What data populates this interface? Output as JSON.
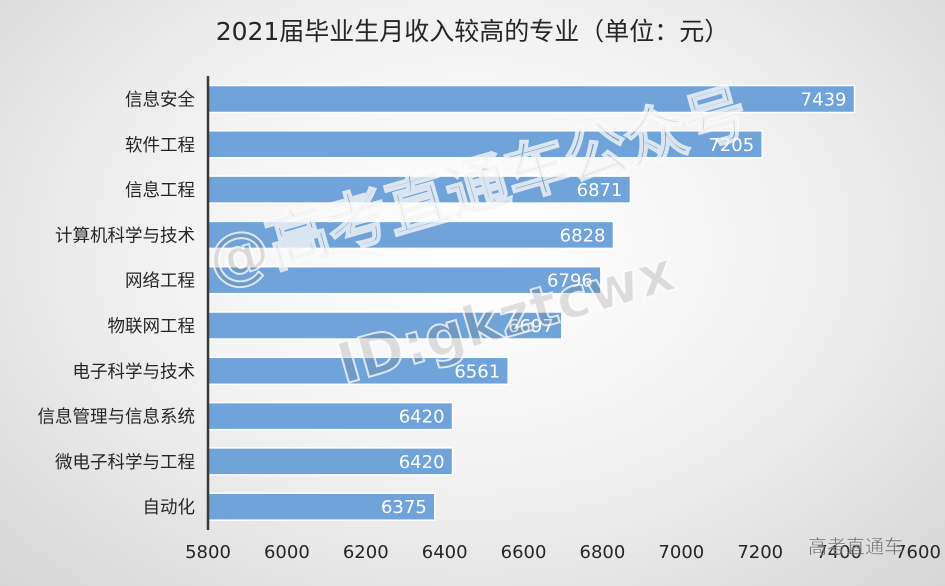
{
  "chart_data": {
    "type": "bar",
    "orientation": "horizontal",
    "title": "2021届毕业生月收入较高的专业（单位：元）",
    "categories": [
      "信息安全",
      "软件工程",
      "信息工程",
      "计算机科学与技术",
      "网络工程",
      "物联网工程",
      "电子科学与技术",
      "信息管理与信息系统",
      "微电子科学与工程",
      "自动化"
    ],
    "values": [
      7439,
      7205,
      6871,
      6828,
      6796,
      6697,
      6561,
      6420,
      6420,
      6375
    ],
    "xlim": [
      5800,
      7600
    ],
    "xticks": [
      5800,
      6000,
      6200,
      6400,
      6600,
      6800,
      7000,
      7200,
      7400,
      7600
    ],
    "xlabel": "",
    "ylabel": "",
    "grid": false,
    "bar_color": "#6fa3d9",
    "label_color": "#ffffff"
  },
  "watermark": {
    "line1": "@高考直通车公众号",
    "line2": "ID:gkztcwx",
    "corner": "高考直通车"
  }
}
